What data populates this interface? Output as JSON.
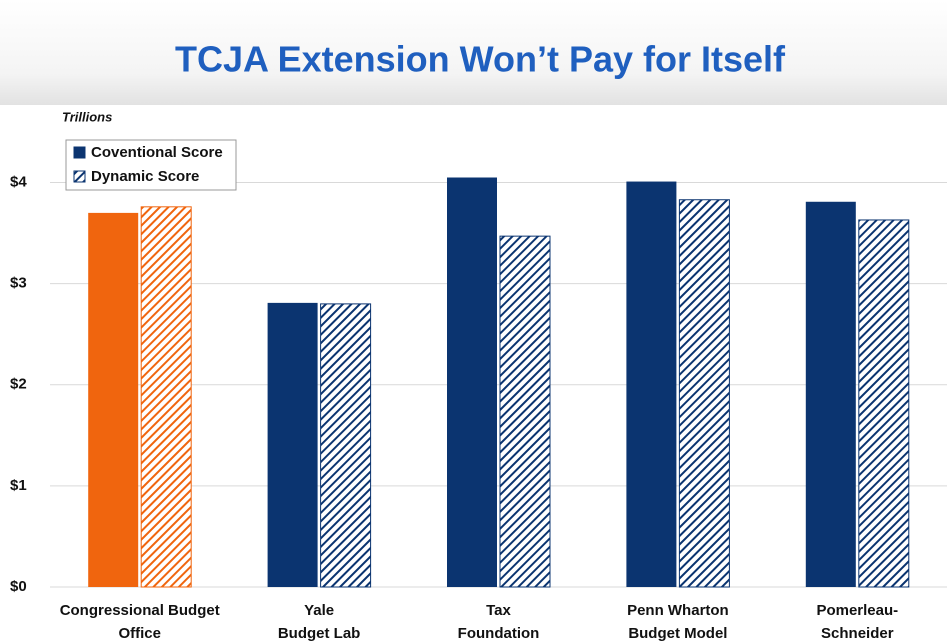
{
  "chart_data": {
    "type": "bar",
    "title": "TCJA Extension Won’t Pay for Itself",
    "y_label": "Trillions",
    "categories": [
      [
        "Congressional Budget",
        "Office"
      ],
      [
        "Yale",
        "Budget Lab"
      ],
      [
        "Tax",
        "Foundation"
      ],
      [
        "Penn Wharton",
        "Budget Model"
      ],
      [
        "Pomerleau-",
        "Schneider"
      ]
    ],
    "series": [
      {
        "name": "Coventional Score",
        "color": "#0b3470",
        "hatch": false,
        "colors": [
          "#f0650e",
          "#0b3470",
          "#0b3470",
          "#0b3470",
          "#0b3470"
        ],
        "values": [
          3.7,
          2.81,
          4.05,
          4.01,
          3.81
        ]
      },
      {
        "name": "Dynamic Score",
        "color": "#0b3470",
        "hatch": true,
        "colors": [
          "#f0650e",
          "#0b3470",
          "#0b3470",
          "#0b3470",
          "#0b3470"
        ],
        "values": [
          3.76,
          2.8,
          3.47,
          3.83,
          3.63
        ]
      }
    ],
    "ylim": [
      0,
      4.5
    ],
    "yticks": [
      {
        "value": 0,
        "label": "$0"
      },
      {
        "value": 1,
        "label": "$1"
      },
      {
        "value": 2,
        "label": "$2"
      },
      {
        "value": 3,
        "label": "$3"
      },
      {
        "value": 4,
        "label": "$4"
      }
    ],
    "grid": true,
    "legend": "top-left"
  }
}
